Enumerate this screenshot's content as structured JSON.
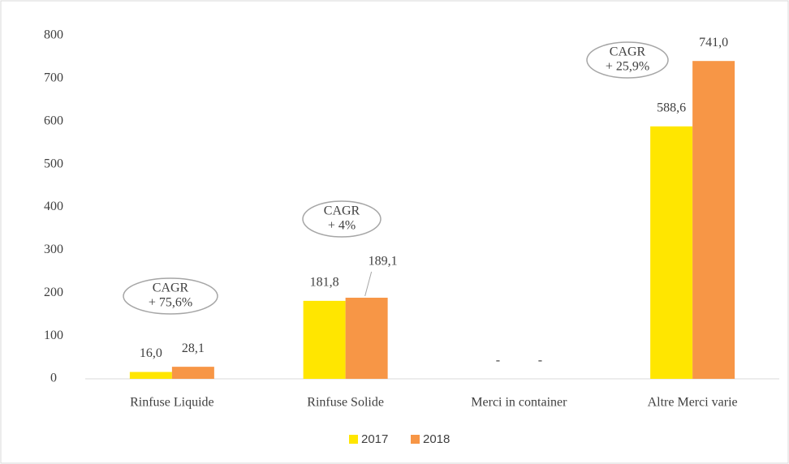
{
  "chart_data": {
    "type": "bar",
    "categories": [
      "Rinfuse Liquide",
      "Rinfuse Solide",
      "Merci in container",
      "Altre Merci varie"
    ],
    "series": [
      {
        "name": "2017",
        "color": "#ffe600",
        "values": [
          16.0,
          181.8,
          0,
          588.6
        ],
        "value_labels": [
          "16,0",
          "181,8",
          "-",
          "588,6"
        ]
      },
      {
        "name": "2018",
        "color": "#f79646",
        "values": [
          28.1,
          189.1,
          0,
          741.0
        ],
        "value_labels": [
          "28,1",
          "189,1",
          "-",
          "741,0"
        ]
      }
    ],
    "ylim": [
      0,
      800
    ],
    "yticks": [
      0,
      100,
      200,
      300,
      400,
      500,
      600,
      700,
      800
    ],
    "annotations": [
      {
        "lines": [
          "CAGR",
          "+ 75,6%"
        ]
      },
      {
        "lines": [
          "CAGR",
          "+ 4%"
        ]
      },
      {
        "lines": [
          "CAGR",
          "+ 25,9%"
        ]
      }
    ],
    "legend": "bottom"
  }
}
